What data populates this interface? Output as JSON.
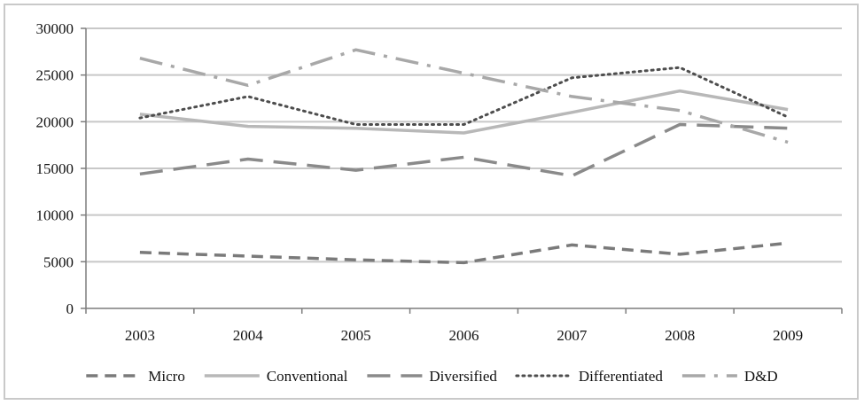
{
  "chart_data": {
    "type": "line",
    "title": "",
    "xlabel": "",
    "ylabel": "",
    "categories": [
      "2003",
      "2004",
      "2005",
      "2006",
      "2007",
      "2008",
      "2009"
    ],
    "ylim": [
      0,
      30000
    ],
    "yticks": [
      0,
      5000,
      10000,
      15000,
      20000,
      25000,
      30000
    ],
    "ytick_labels": [
      "0",
      "5000",
      "10000",
      "15000",
      "20000",
      "25000",
      "30000"
    ],
    "grid": "horizontal",
    "legend": "bottom",
    "series": [
      {
        "name": "Micro",
        "values": [
          6000,
          5600,
          5200,
          4900,
          6800,
          5800,
          7000
        ],
        "color": "#7a7a7a",
        "dash": "dashed"
      },
      {
        "name": "Conventional",
        "values": [
          20800,
          19500,
          19300,
          18800,
          21000,
          23300,
          21300
        ],
        "color": "#b8b8b8",
        "dash": "solid"
      },
      {
        "name": "Diversified",
        "values": [
          14400,
          16000,
          14800,
          16200,
          14200,
          19700,
          19300
        ],
        "color": "#8a8a8a",
        "dash": "longdash"
      },
      {
        "name": "Differentiated",
        "values": [
          20400,
          22700,
          19700,
          19700,
          24700,
          25800,
          20500
        ],
        "color": "#4d4d4d",
        "dash": "dotted"
      },
      {
        "name": "D&D",
        "values": [
          26800,
          23900,
          27700,
          25200,
          22700,
          21200,
          17800
        ],
        "color": "#a8a8a8",
        "dash": "dashdot"
      }
    ]
  }
}
